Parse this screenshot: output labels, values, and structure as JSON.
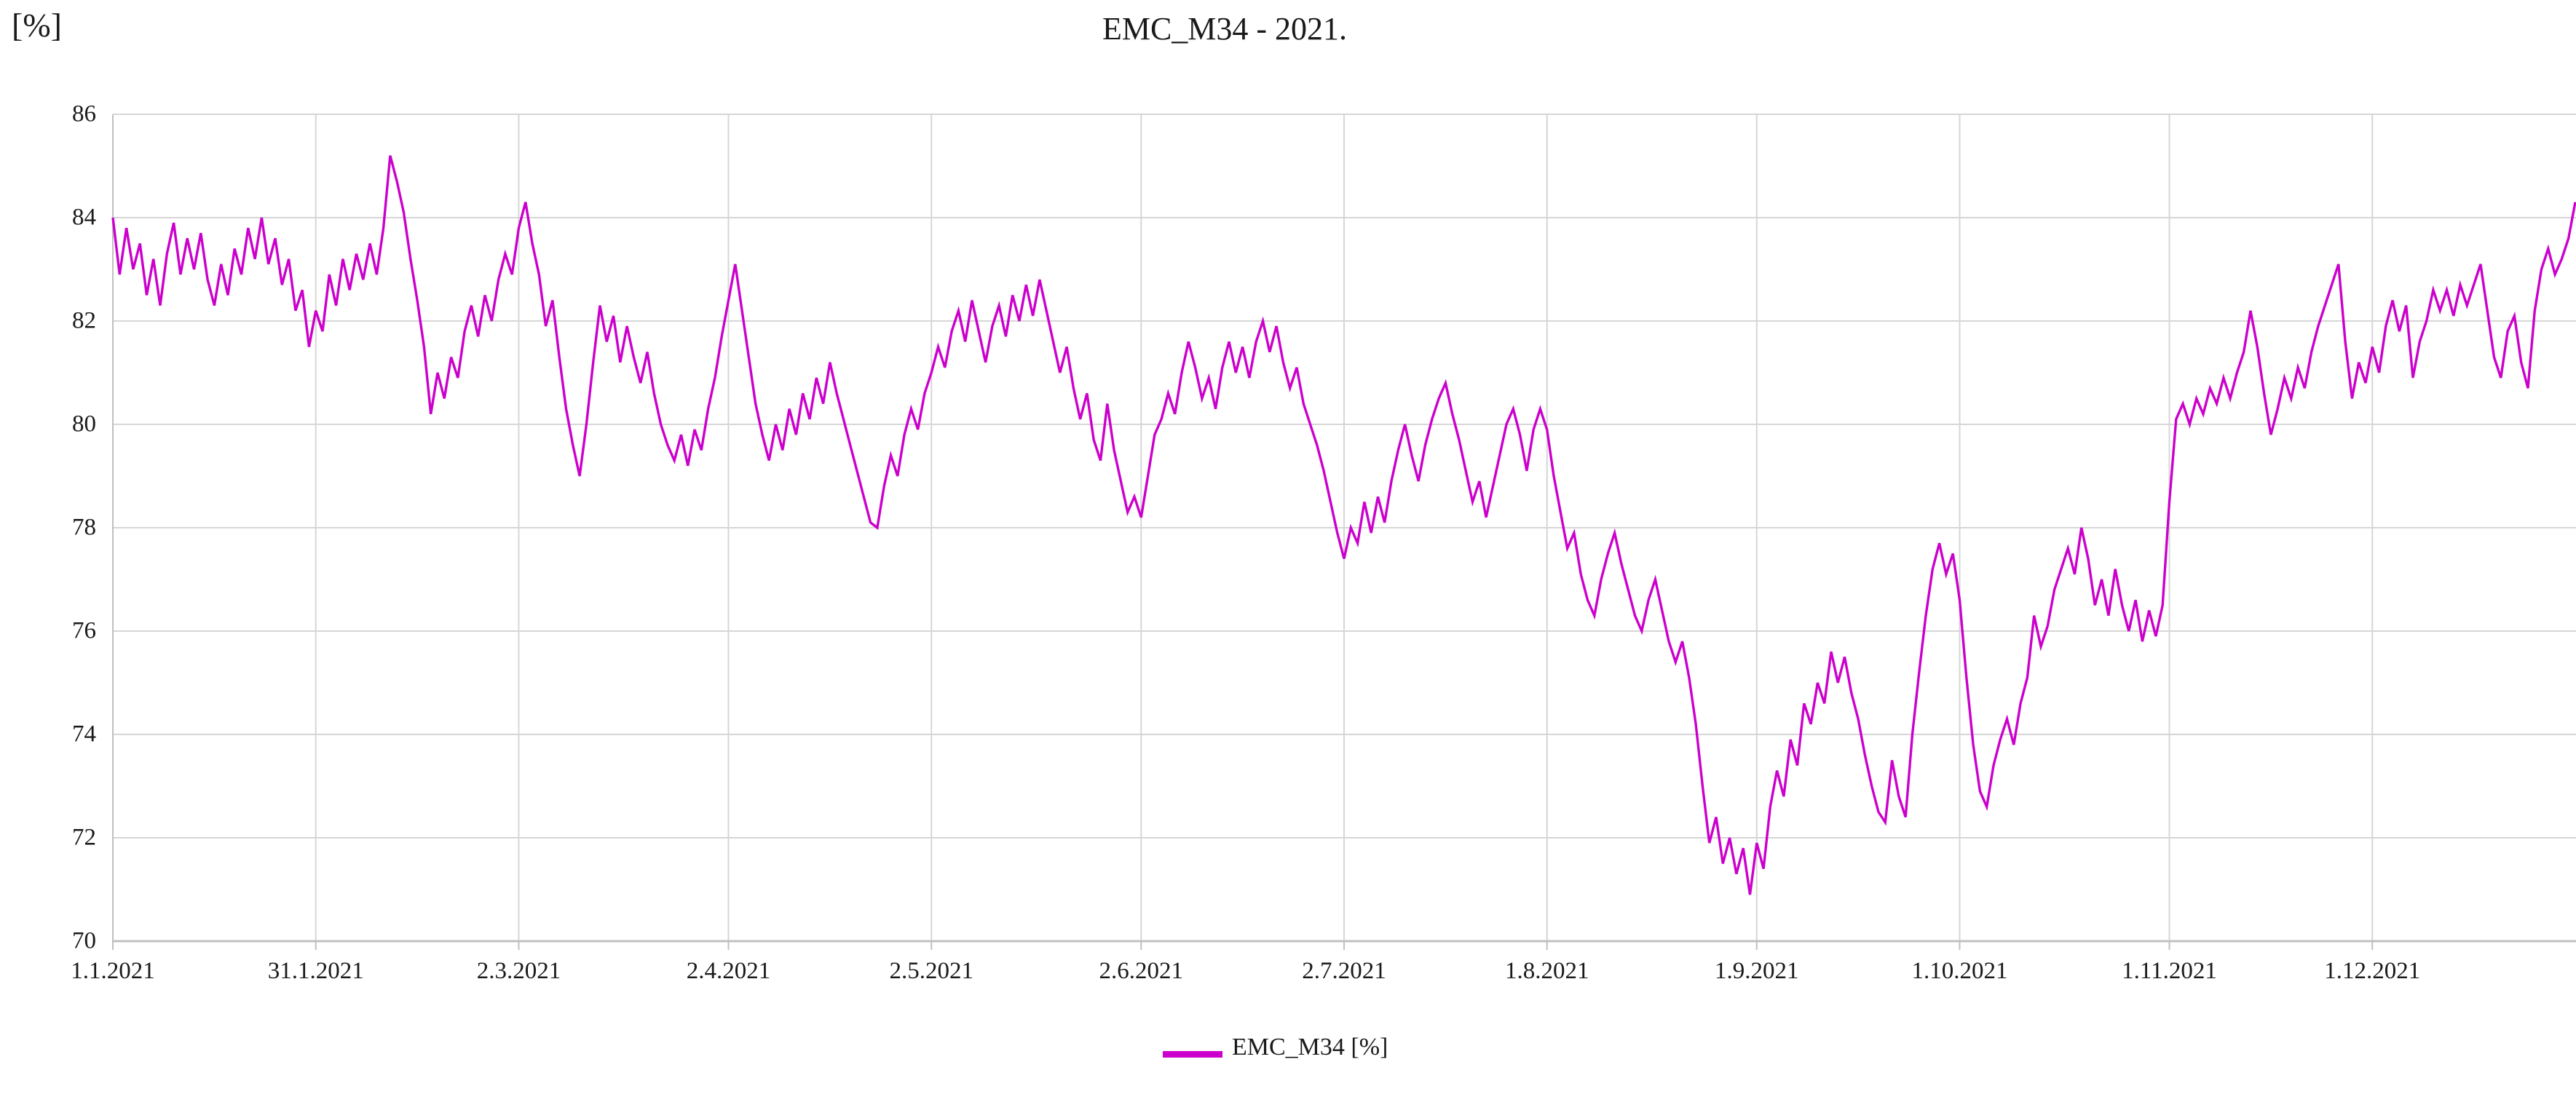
{
  "title": "EMC_M34 - 2021.",
  "y_axis_unit_label": "[%]",
  "legend": {
    "series_label": "EMC_M34 [%]"
  },
  "colors": {
    "series": "#CC00CC",
    "gridline": "#D6D6D6",
    "axis": "#C0C0C0",
    "text": "#1A1A1A",
    "background": "#FFFFFF"
  },
  "chart_data": {
    "type": "line",
    "title": "EMC_M34 - 2021.",
    "xlabel": "",
    "ylabel": "[%]",
    "series_name": "EMC_M34 [%]",
    "ylim": [
      70,
      86
    ],
    "y_ticks": [
      86,
      84,
      82,
      80,
      78,
      76,
      74,
      72,
      70
    ],
    "grid": true,
    "legend_position": "bottom-center",
    "sampling": "daily values, day 0 = 1.1.2021, day 364 = 31.12.2021",
    "x_ticks": [
      {
        "label": "1.1.2021",
        "day": 0
      },
      {
        "label": "31.1.2021",
        "day": 30
      },
      {
        "label": "2.3.2021",
        "day": 60
      },
      {
        "label": "2.4.2021",
        "day": 91
      },
      {
        "label": "2.5.2021",
        "day": 121
      },
      {
        "label": "2.6.2021",
        "day": 152
      },
      {
        "label": "2.7.2021",
        "day": 182
      },
      {
        "label": "1.8.2021",
        "day": 212
      },
      {
        "label": "1.9.2021",
        "day": 243
      },
      {
        "label": "1.10.2021",
        "day": 273
      },
      {
        "label": "1.11.2021",
        "day": 304
      },
      {
        "label": "1.12.2021",
        "day": 334
      }
    ],
    "values": [
      84.0,
      82.9,
      83.8,
      83.0,
      83.5,
      82.5,
      83.2,
      82.3,
      83.3,
      83.9,
      82.9,
      83.6,
      83.0,
      83.7,
      82.8,
      82.3,
      83.1,
      82.5,
      83.4,
      82.9,
      83.8,
      83.2,
      84.0,
      83.1,
      83.6,
      82.7,
      83.2,
      82.2,
      82.6,
      81.5,
      82.2,
      81.8,
      82.9,
      82.3,
      83.2,
      82.6,
      83.3,
      82.8,
      83.5,
      82.9,
      83.8,
      85.2,
      84.7,
      84.1,
      83.2,
      82.4,
      81.5,
      80.2,
      81.0,
      80.5,
      81.3,
      80.9,
      81.8,
      82.3,
      81.7,
      82.5,
      82.0,
      82.8,
      83.3,
      82.9,
      83.8,
      84.3,
      83.5,
      82.9,
      81.9,
      82.4,
      81.3,
      80.3,
      79.6,
      79.0,
      80.0,
      81.2,
      82.3,
      81.6,
      82.1,
      81.2,
      81.9,
      81.3,
      80.8,
      81.4,
      80.6,
      80.0,
      79.6,
      79.3,
      79.8,
      79.2,
      79.9,
      79.5,
      80.3,
      80.9,
      81.7,
      82.4,
      83.1,
      82.2,
      81.3,
      80.4,
      79.8,
      79.3,
      80.0,
      79.5,
      80.3,
      79.8,
      80.6,
      80.1,
      80.9,
      80.4,
      81.2,
      80.6,
      80.1,
      79.6,
      79.1,
      78.6,
      78.1,
      78.0,
      78.8,
      79.4,
      79.0,
      79.8,
      80.3,
      79.9,
      80.6,
      81.0,
      81.5,
      81.1,
      81.8,
      82.2,
      81.6,
      82.4,
      81.8,
      81.2,
      81.9,
      82.3,
      81.7,
      82.5,
      82.0,
      82.7,
      82.1,
      82.8,
      82.2,
      81.6,
      81.0,
      81.5,
      80.7,
      80.1,
      80.6,
      79.7,
      79.3,
      80.4,
      79.5,
      78.9,
      78.3,
      78.6,
      78.2,
      79.0,
      79.8,
      80.1,
      80.6,
      80.2,
      81.0,
      81.6,
      81.1,
      80.5,
      80.9,
      80.3,
      81.1,
      81.6,
      81.0,
      81.5,
      80.9,
      81.6,
      82.0,
      81.4,
      81.9,
      81.2,
      80.7,
      81.1,
      80.4,
      80.0,
      79.6,
      79.1,
      78.5,
      77.9,
      77.4,
      78.0,
      77.7,
      78.5,
      77.9,
      78.6,
      78.1,
      78.9,
      79.5,
      80.0,
      79.4,
      78.9,
      79.6,
      80.1,
      80.5,
      80.8,
      80.2,
      79.7,
      79.1,
      78.5,
      78.9,
      78.2,
      78.8,
      79.4,
      80.0,
      80.3,
      79.8,
      79.1,
      79.9,
      80.3,
      79.9,
      79.0,
      78.3,
      77.6,
      77.9,
      77.1,
      76.6,
      76.3,
      77.0,
      77.5,
      77.9,
      77.3,
      76.8,
      76.3,
      76.0,
      76.6,
      77.0,
      76.4,
      75.8,
      75.4,
      75.8,
      75.1,
      74.2,
      73.0,
      71.9,
      72.4,
      71.5,
      72.0,
      71.3,
      71.8,
      70.9,
      71.9,
      71.4,
      72.6,
      73.3,
      72.8,
      73.9,
      73.4,
      74.6,
      74.2,
      75.0,
      74.6,
      75.6,
      75.0,
      75.5,
      74.8,
      74.3,
      73.6,
      73.0,
      72.5,
      72.3,
      73.5,
      72.8,
      72.4,
      74.0,
      75.2,
      76.3,
      77.2,
      77.7,
      77.1,
      77.5,
      76.6,
      75.1,
      73.8,
      72.9,
      72.6,
      73.4,
      73.9,
      74.3,
      73.8,
      74.6,
      75.1,
      76.3,
      75.7,
      76.1,
      76.8,
      77.2,
      77.6,
      77.1,
      78.0,
      77.4,
      76.5,
      77.0,
      76.3,
      77.2,
      76.5,
      76.0,
      76.6,
      75.8,
      76.4,
      75.9,
      76.5,
      78.5,
      80.1,
      80.4,
      80.0,
      80.5,
      80.2,
      80.7,
      80.4,
      80.9,
      80.5,
      81.0,
      81.4,
      82.2,
      81.5,
      80.6,
      79.8,
      80.3,
      80.9,
      80.5,
      81.1,
      80.7,
      81.4,
      81.9,
      82.3,
      82.7,
      83.1,
      81.6,
      80.5,
      81.2,
      80.8,
      81.5,
      81.0,
      81.9,
      82.4,
      81.8,
      82.3,
      80.9,
      81.6,
      82.0,
      82.6,
      82.2,
      82.6,
      82.1,
      82.7,
      82.3,
      82.7,
      83.1,
      82.2,
      81.3,
      80.9,
      81.8,
      82.1,
      81.2,
      80.7,
      82.2,
      83.0,
      83.4,
      82.9,
      83.2,
      83.6,
      84.3
    ]
  }
}
